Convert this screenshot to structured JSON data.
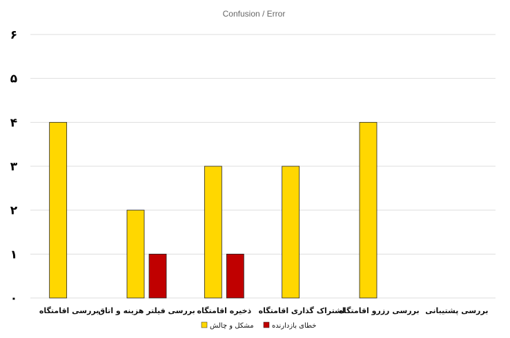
{
  "chart_data": {
    "type": "bar",
    "title": "Confusion / Error",
    "categories": [
      "بررسی اقامتگاه",
      "بررسی فیلتر هزینه و اتاق",
      "ذخیره اقامتگاه",
      "اشتراک گذاری اقامتگاه",
      "بررسی رزرو اقامتگاه",
      "بررسی پشتیبانی"
    ],
    "series": [
      {
        "name": "مشکل و چالش",
        "color": "#FFD700",
        "values": [
          4,
          2,
          3,
          3,
          4,
          0
        ]
      },
      {
        "name": "خطای بازدارنده",
        "color": "#C00000",
        "values": [
          0,
          1,
          1,
          0,
          0,
          0
        ]
      }
    ],
    "ylim": [
      0,
      6
    ],
    "yticks": [
      "۰",
      "۱",
      "۲",
      "۳",
      "۴",
      "۵",
      "۶"
    ],
    "grid": true,
    "legend_position": "bottom"
  }
}
